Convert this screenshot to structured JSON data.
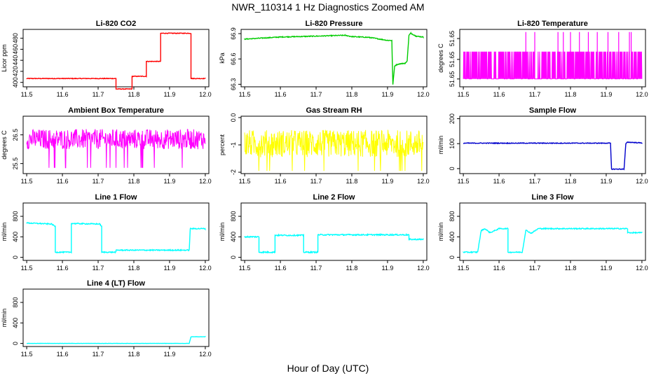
{
  "figure": {
    "title": "NWR_110314  1 Hz Diagnostics Zoomed AM",
    "xlabel": "Hour of Day (UTC)"
  },
  "chart_data": [
    {
      "type": "line",
      "title": "Li-820 CO2",
      "ylabel": "Licor ppm",
      "color": "#ff0000",
      "xlim": [
        11.49,
        12.01
      ],
      "ylim": [
        392,
        496
      ],
      "xticks": [
        "11.5",
        "11.6",
        "11.7",
        "11.8",
        "11.9",
        "12.0"
      ],
      "yticks": [
        400,
        420,
        440,
        460,
        480
      ],
      "noise": 0.6,
      "x": [
        11.5,
        11.75,
        11.75,
        11.795,
        11.795,
        11.835,
        11.835,
        11.875,
        11.875,
        11.96,
        11.96,
        12.0
      ],
      "y": [
        407,
        407,
        388,
        388,
        411,
        411,
        438,
        438,
        489,
        489,
        407,
        407
      ]
    },
    {
      "type": "line",
      "title": "Li-820 Pressure",
      "ylabel": "kPa",
      "color": "#00cc00",
      "xlim": [
        11.49,
        12.01
      ],
      "ylim": [
        66.27,
        66.95
      ],
      "xticks": [
        "11.5",
        "11.6",
        "11.7",
        "11.8",
        "11.9",
        "12.0"
      ],
      "yticks": [
        "66.3",
        "66.6",
        "66.9"
      ],
      "noise": 0.005,
      "x": [
        11.5,
        11.6,
        11.7,
        11.78,
        11.8,
        11.85,
        11.9,
        11.912,
        11.915,
        11.92,
        11.93,
        11.95,
        11.955,
        11.96,
        11.965,
        11.98,
        12.0
      ],
      "y": [
        66.835,
        66.86,
        66.87,
        66.88,
        66.865,
        66.855,
        66.82,
        66.82,
        66.3,
        66.52,
        66.54,
        66.55,
        66.58,
        66.88,
        66.905,
        66.87,
        66.86
      ]
    },
    {
      "type": "line",
      "title": "Li-820 Temperature",
      "ylabel": "degrees C",
      "color": "#ff00ff",
      "xlim": [
        11.49,
        12.01
      ],
      "ylim": [
        51.6488,
        51.6532
      ],
      "xticks": [
        "11.5",
        "11.6",
        "11.7",
        "11.8",
        "11.9",
        "12.0"
      ],
      "yticks": [
        "51.65",
        "51.65",
        "51.65"
      ],
      "ytickvals": [
        51.6494,
        51.6509,
        51.6525
      ],
      "dense": true,
      "low": 51.6494,
      "high": 51.6515,
      "spikes": [
        11.675,
        11.7,
        11.765,
        11.78,
        11.8,
        11.825,
        11.85,
        11.875,
        11.905,
        11.935,
        11.965,
        11.97
      ],
      "spiketop": 51.653
    },
    {
      "type": "line",
      "title": "Ambient Box Temperature",
      "ylabel": "degrees C",
      "color": "#ff00ff",
      "xlim": [
        11.49,
        12.01
      ],
      "ylim": [
        25.15,
        27.15
      ],
      "xticks": [
        "11.5",
        "11.6",
        "11.7",
        "11.8",
        "11.9",
        "12.0"
      ],
      "yticks": [
        "25.5",
        "26.5"
      ],
      "ytickvals": [
        25.5,
        26.5
      ],
      "band": true,
      "center": 26.35,
      "spread": 0.35,
      "outlier": 25.35
    },
    {
      "type": "line",
      "title": "Gas Stream RH",
      "ylabel": "percent",
      "color": "#ffff00",
      "xlim": [
        11.49,
        12.01
      ],
      "ylim": [
        -2.05,
        0.05
      ],
      "xticks": [
        "11.5",
        "11.6",
        "11.7",
        "11.8",
        "11.9",
        "12.0"
      ],
      "yticks": [
        "-2",
        "-1",
        "0.0"
      ],
      "ytickvals": [
        -2,
        -1,
        0
      ],
      "band": true,
      "center": -0.95,
      "spread": 0.5,
      "outlier": -1.95
    },
    {
      "type": "line",
      "title": "Sample Flow",
      "ylabel": "ml/min",
      "color": "#0000cc",
      "xlim": [
        11.49,
        12.01
      ],
      "ylim": [
        -20,
        210
      ],
      "xticks": [
        "11.5",
        "11.6",
        "11.7",
        "11.8",
        "11.9",
        "12.0"
      ],
      "yticks": [
        0,
        100,
        200
      ],
      "noise": 1.5,
      "x": [
        11.5,
        11.9,
        11.912,
        11.915,
        11.95,
        11.955,
        11.96,
        12.0
      ],
      "y": [
        102,
        102,
        102,
        -2,
        -2,
        100,
        106,
        103
      ]
    },
    {
      "type": "line",
      "title": "Line 1 Flow",
      "ylabel": "ml/min",
      "color": "#00ffff",
      "xlim": [
        11.49,
        12.01
      ],
      "ylim": [
        -60,
        1060
      ],
      "xticks": [
        "11.5",
        "11.6",
        "11.7",
        "11.8",
        "11.9",
        "12.0"
      ],
      "yticks": [
        0,
        400,
        800
      ],
      "noise": 10,
      "x": [
        11.5,
        11.57,
        11.58,
        11.58,
        11.625,
        11.625,
        11.705,
        11.71,
        11.71,
        11.75,
        11.75,
        11.955,
        11.958,
        12.0
      ],
      "y": [
        670,
        650,
        600,
        100,
        100,
        660,
        650,
        600,
        100,
        100,
        140,
        140,
        560,
        560
      ]
    },
    {
      "type": "line",
      "title": "Line 2 Flow",
      "ylabel": "ml/min",
      "color": "#00ffff",
      "xlim": [
        11.49,
        12.01
      ],
      "ylim": [
        -60,
        1060
      ],
      "xticks": [
        "11.5",
        "11.6",
        "11.7",
        "11.8",
        "11.9",
        "12.0"
      ],
      "yticks": [
        0,
        400,
        800
      ],
      "noise": 12,
      "x": [
        11.5,
        11.54,
        11.54,
        11.585,
        11.585,
        11.665,
        11.665,
        11.705,
        11.705,
        11.96,
        11.96,
        12.0
      ],
      "y": [
        400,
        400,
        100,
        100,
        430,
        430,
        100,
        100,
        440,
        440,
        350,
        350
      ]
    },
    {
      "type": "line",
      "title": "Line 3 Flow",
      "ylabel": "ml/min",
      "color": "#00ffff",
      "xlim": [
        11.49,
        12.01
      ],
      "ylim": [
        -60,
        1060
      ],
      "xticks": [
        "11.5",
        "11.6",
        "11.7",
        "11.8",
        "11.9",
        "12.0"
      ],
      "yticks": [
        0,
        400,
        800
      ],
      "noise": 10,
      "x": [
        11.5,
        11.54,
        11.55,
        11.56,
        11.575,
        11.6,
        11.625,
        11.625,
        11.665,
        11.675,
        11.69,
        11.71,
        11.72,
        11.96,
        11.96,
        12.0
      ],
      "y": [
        100,
        100,
        520,
        560,
        480,
        560,
        560,
        100,
        100,
        530,
        470,
        560,
        560,
        560,
        480,
        480
      ]
    },
    {
      "type": "line",
      "title": "Line 4 (LT) Flow",
      "ylabel": "ml/min",
      "color": "#00ffff",
      "xlim": [
        11.49,
        12.01
      ],
      "ylim": [
        -60,
        1060
      ],
      "xticks": [
        "11.5",
        "11.6",
        "11.7",
        "11.8",
        "11.9",
        "12.0"
      ],
      "yticks": [
        0,
        400,
        800
      ],
      "noise": 2,
      "x": [
        11.5,
        11.955,
        11.96,
        12.0
      ],
      "y": [
        0,
        0,
        130,
        130
      ]
    }
  ]
}
